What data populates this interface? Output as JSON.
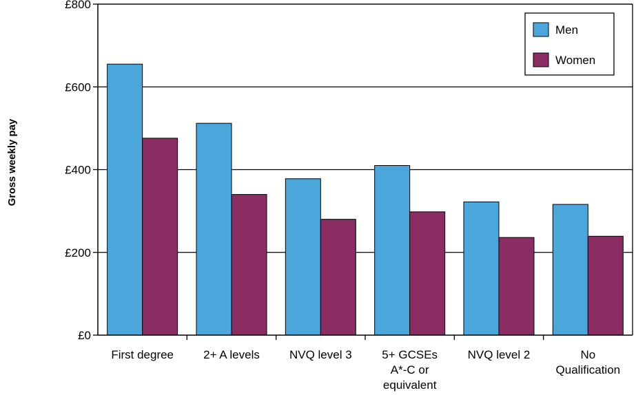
{
  "chart_data": {
    "type": "bar",
    "ylabel": "Gross weekly pay",
    "xlabel": "",
    "ylim": [
      0,
      800
    ],
    "yticks": [
      0,
      200,
      400,
      600,
      800
    ],
    "ytick_labels": [
      "£0",
      "£200",
      "£400",
      "£600",
      "£800"
    ],
    "categories": [
      [
        "First degree"
      ],
      [
        "2+ A levels"
      ],
      [
        "NVQ level 3"
      ],
      [
        "5+ GCSEs",
        "A*-C or",
        "equivalent"
      ],
      [
        "NVQ level 2"
      ],
      [
        "No",
        "Qualification"
      ]
    ],
    "series": [
      {
        "name": "Men",
        "color": "#4ba6dc",
        "values": [
          655,
          512,
          378,
          410,
          322,
          316
        ]
      },
      {
        "name": "Women",
        "color": "#8a2d62",
        "values": [
          476,
          340,
          280,
          298,
          236,
          239
        ]
      }
    ],
    "grid": "horizontal",
    "legend_position": "top-right"
  }
}
